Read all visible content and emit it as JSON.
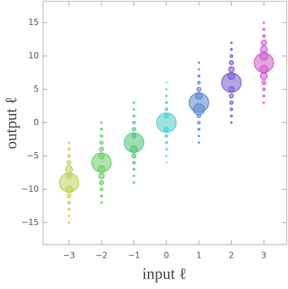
{
  "chart_data": {
    "type": "bubble",
    "xlabel": "input ℓ",
    "ylabel": "output ℓ",
    "xlim": [
      -3.8,
      3.7
    ],
    "ylim": [
      -18.3,
      18.2
    ],
    "xticks": [
      {
        "value": -3,
        "label": "−3"
      },
      {
        "value": -2,
        "label": "−2"
      },
      {
        "value": -1,
        "label": "−1"
      },
      0,
      1,
      2,
      3
    ],
    "yticks": [
      {
        "value": -15,
        "label": "−15"
      },
      {
        "value": -10,
        "label": "−10"
      },
      {
        "value": -5,
        "label": "−5"
      },
      0,
      5,
      10,
      15
    ],
    "series": [
      {
        "color": "#e2f76a",
        "x": -3,
        "values": [
          -15,
          -14,
          -13,
          -12,
          -11,
          -10,
          -9,
          -8,
          -7,
          -6,
          -5,
          -4,
          -3
        ],
        "sizes": [
          1,
          1,
          1.5,
          2,
          3,
          5,
          14,
          4,
          5,
          3,
          2,
          1.5,
          1
        ]
      },
      {
        "color": "#7ff07a",
        "x": -2,
        "values": [
          -12,
          -11,
          -10,
          -9,
          -8,
          -7,
          -6,
          -5,
          -4,
          -3,
          -2,
          -1,
          0
        ],
        "sizes": [
          1,
          1.5,
          2,
          3,
          4,
          5,
          14,
          4,
          3,
          2.5,
          2,
          1.5,
          1
        ]
      },
      {
        "color": "#5ee88e",
        "x": -1,
        "values": [
          -9,
          -8,
          -7,
          -6,
          -5,
          -4,
          -3,
          -2,
          -1,
          0,
          1,
          2,
          3
        ],
        "sizes": [
          1,
          1,
          1.5,
          2,
          3,
          5,
          14,
          3,
          2.5,
          2,
          1.5,
          1,
          1
        ]
      },
      {
        "color": "#5cf0ee",
        "x": 0,
        "values": [
          -6,
          -5,
          -4,
          -3,
          -2,
          -1,
          0,
          1,
          2,
          3,
          4,
          5,
          6
        ],
        "sizes": [
          0.6,
          0.8,
          1,
          1.5,
          2,
          3,
          14,
          3,
          2,
          1.5,
          1,
          0.8,
          0.6
        ]
      },
      {
        "color": "#6a9ef2",
        "x": 1,
        "values": [
          -3,
          -2,
          -1,
          0,
          1,
          2,
          3,
          4,
          5,
          6,
          7,
          8,
          9
        ],
        "sizes": [
          1,
          1,
          1.5,
          2,
          2.5,
          8,
          14,
          5,
          3,
          2,
          1.5,
          1,
          1
        ]
      },
      {
        "color": "#8e6cf0",
        "x": 2,
        "values": [
          0,
          1,
          2,
          3,
          4,
          5,
          6,
          7,
          8,
          9,
          10,
          11,
          12
        ],
        "sizes": [
          1,
          1.5,
          2,
          2.5,
          3,
          4,
          14,
          5,
          4,
          3,
          2,
          1.5,
          1
        ]
      },
      {
        "color": "#f06ef0",
        "x": 3,
        "values": [
          3,
          4,
          5,
          6,
          7,
          8,
          9,
          10,
          11,
          12,
          13,
          14,
          15
        ],
        "sizes": [
          1,
          1.5,
          2,
          3,
          5,
          6,
          14,
          6,
          5,
          4,
          2,
          1.5,
          1
        ]
      }
    ]
  }
}
